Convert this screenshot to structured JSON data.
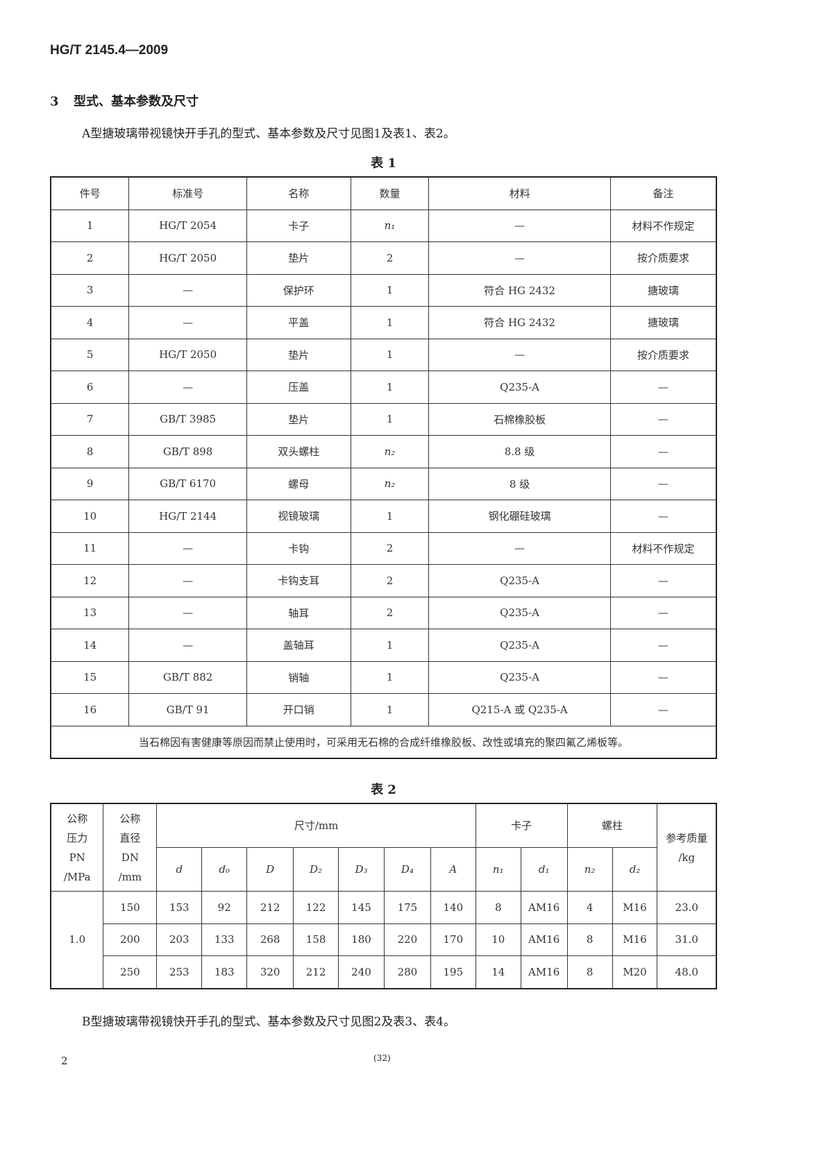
{
  "header": {
    "standard": "HG/T 2145.4—2009"
  },
  "section": {
    "number": "3",
    "title": "型式、基本参数及尺寸"
  },
  "intro": "A型搪玻璃带视镜快开手孔的型式、基本参数及尺寸见图1及表1、表2。",
  "table1": {
    "title": "表 1",
    "headers": [
      "件号",
      "标准号",
      "名称",
      "数量",
      "材料",
      "备注"
    ],
    "rows": [
      [
        "1",
        "HG/T 2054",
        "卡子",
        "n₁",
        "—",
        "材料不作规定"
      ],
      [
        "2",
        "HG/T 2050",
        "垫片",
        "2",
        "—",
        "按介质要求"
      ],
      [
        "3",
        "—",
        "保护环",
        "1",
        "符合 HG 2432",
        "搪玻璃"
      ],
      [
        "4",
        "—",
        "平盖",
        "1",
        "符合 HG 2432",
        "搪玻璃"
      ],
      [
        "5",
        "HG/T 2050",
        "垫片",
        "1",
        "—",
        "按介质要求"
      ],
      [
        "6",
        "—",
        "压盖",
        "1",
        "Q235-A",
        "—"
      ],
      [
        "7",
        "GB/T 3985",
        "垫片",
        "1",
        "石棉橡胶板",
        "—"
      ],
      [
        "8",
        "GB/T 898",
        "双头螺柱",
        "n₂",
        "8.8 级",
        "—"
      ],
      [
        "9",
        "GB/T 6170",
        "螺母",
        "n₂",
        "8 级",
        "—"
      ],
      [
        "10",
        "HG/T 2144",
        "视镜玻璃",
        "1",
        "钢化硼硅玻璃",
        "—"
      ],
      [
        "11",
        "—",
        "卡钩",
        "2",
        "—",
        "材料不作规定"
      ],
      [
        "12",
        "—",
        "卡钩支耳",
        "2",
        "Q235-A",
        "—"
      ],
      [
        "13",
        "—",
        "轴耳",
        "2",
        "Q235-A",
        "—"
      ],
      [
        "14",
        "—",
        "盖轴耳",
        "1",
        "Q235-A",
        "—"
      ],
      [
        "15",
        "GB/T 882",
        "销轴",
        "1",
        "Q235-A",
        "—"
      ],
      [
        "16",
        "GB/T 91",
        "开口销",
        "1",
        "Q215-A 或 Q235-A",
        "—"
      ]
    ],
    "note": "当石棉因有害健康等原因而禁止使用时，可采用无石棉的合成纤维橡胶板、改性或填充的聚四氟乙烯板等。"
  },
  "table2": {
    "title": "表 2",
    "h_pn": "公称\n压力\nPN\n/MPa",
    "h_dn": "公称\n直径\nDN\n/mm",
    "h_dim": "尺寸/mm",
    "h_clamp": "卡子",
    "h_stud": "螺柱",
    "h_mass": "参考质量\n/kg",
    "sub": [
      "d",
      "d₀",
      "D",
      "D₂",
      "D₃",
      "D₄",
      "A",
      "n₁",
      "d₁",
      "n₂",
      "d₂"
    ],
    "pn": "1.0",
    "rows": [
      [
        "150",
        "153",
        "92",
        "212",
        "122",
        "145",
        "175",
        "140",
        "8",
        "AM16",
        "4",
        "M16",
        "23.0"
      ],
      [
        "200",
        "203",
        "133",
        "268",
        "158",
        "180",
        "220",
        "170",
        "10",
        "AM16",
        "8",
        "M16",
        "31.0"
      ],
      [
        "250",
        "253",
        "183",
        "320",
        "212",
        "240",
        "280",
        "195",
        "14",
        "AM16",
        "8",
        "M20",
        "48.0"
      ]
    ]
  },
  "outro": "B型搪玻璃带视镜快开手孔的型式、基本参数及尺寸见图2及表3、表4。",
  "footer": {
    "page": "2",
    "page_code": "(32)"
  }
}
